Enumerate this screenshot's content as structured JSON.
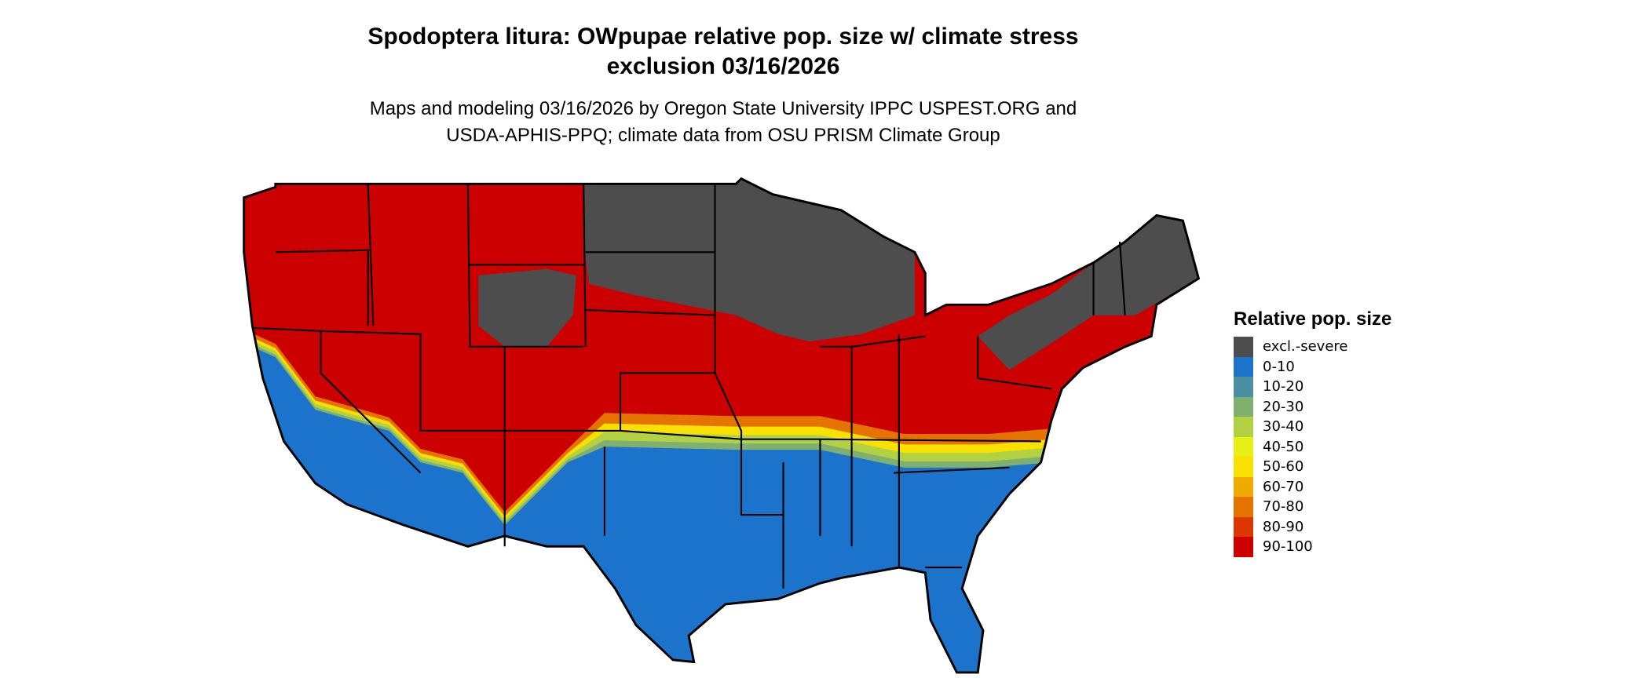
{
  "title": {
    "line1": "Spodoptera litura: OWpupae relative pop. size w/ climate stress",
    "line2": "exclusion 03/16/2026"
  },
  "subtitle": {
    "line1": "Maps and modeling 03/16/2026 by Oregon State University IPPC USPEST.ORG and",
    "line2": "USDA-APHIS-PPQ; climate data from OSU PRISM Climate Group"
  },
  "legend": {
    "title": "Relative pop. size",
    "items": [
      {
        "label": "excl.-severe",
        "color": "#4d4d4d"
      },
      {
        "label": "0-10",
        "color": "#1c73cc"
      },
      {
        "label": "10-20",
        "color": "#4a90a0"
      },
      {
        "label": "20-30",
        "color": "#7fb070"
      },
      {
        "label": "30-40",
        "color": "#b3d243"
      },
      {
        "label": "40-50",
        "color": "#e6f016"
      },
      {
        "label": "50-60",
        "color": "#f8e000"
      },
      {
        "label": "60-70",
        "color": "#efab00"
      },
      {
        "label": "70-80",
        "color": "#e57300"
      },
      {
        "label": "80-90",
        "color": "#dc3700"
      },
      {
        "label": "90-100",
        "color": "#cc0000"
      }
    ]
  }
}
